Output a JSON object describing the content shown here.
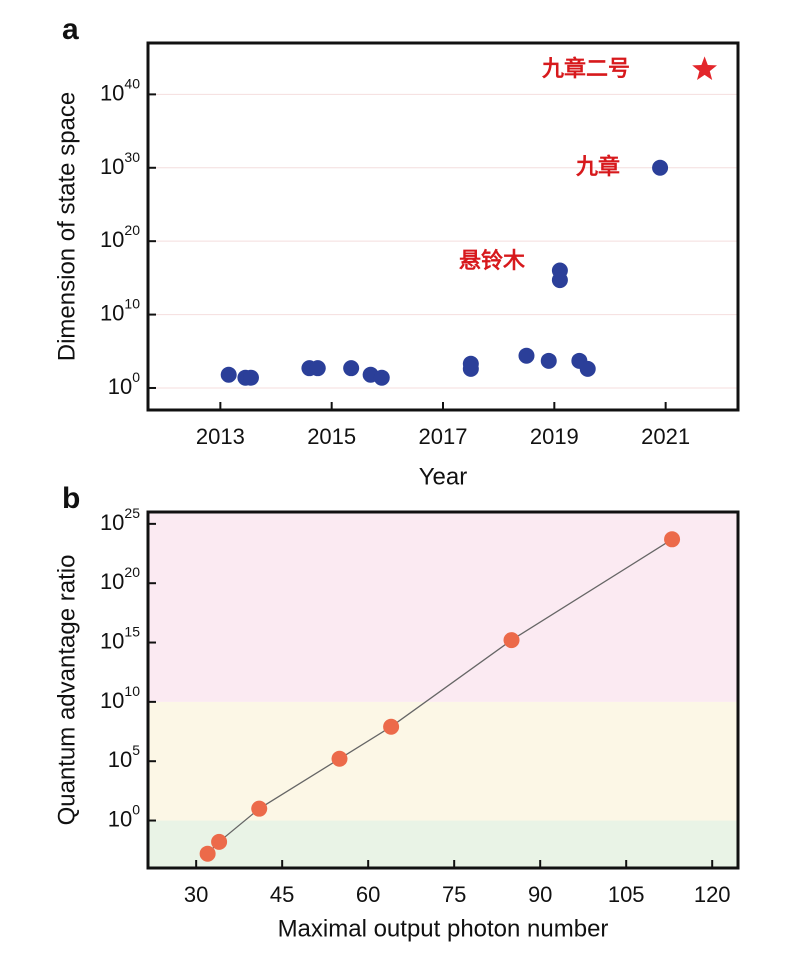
{
  "chart_data": [
    {
      "type": "scatter",
      "panel": "a",
      "x_label": "Year",
      "y_label": "Dimension of state space",
      "x": [
        2013.15,
        2013.45,
        2013.55,
        2014.6,
        2014.75,
        2015.35,
        2015.7,
        2015.9,
        2017.5,
        2017.5,
        2018.5,
        2018.9,
        2019.1,
        2019.1,
        2019.45,
        2019.6,
        2020.9
      ],
      "values": [
        63,
        25,
        25,
        500,
        500,
        500,
        63,
        25,
        2000,
        400,
        25000,
        5000,
        1e+16,
        500000000000000.0,
        5000,
        400,
        1e+30
      ],
      "color": "#2b3f99",
      "highlight": {
        "x": 2021.7,
        "value": 2.5e+43,
        "color": "#e3262b"
      },
      "annotations": [
        "悬铃木",
        "九章",
        "九章二号"
      ],
      "xlim": [
        2011.7,
        2022.3
      ],
      "xticks": [
        2013,
        2015,
        2017,
        2019,
        2021
      ],
      "ylim": [
        0.001,
        1e+47
      ],
      "log_y": true,
      "grid": true,
      "grid_color": "#f4dede",
      "yticks": [
        {
          "value": 1,
          "label": "10^0"
        },
        {
          "value": 10000000000.0,
          "label": "10^10"
        },
        {
          "value": 1e+20,
          "label": "10^20"
        },
        {
          "value": 1e+30,
          "label": "10^30"
        },
        {
          "value": 1e+40,
          "label": "10^40"
        }
      ]
    },
    {
      "type": "line",
      "panel": "b",
      "x_label": "Maximal output photon number",
      "y_label": "Quantum advantage ratio",
      "x": [
        32,
        34,
        41,
        55,
        64,
        85,
        113
      ],
      "values": [
        0.0016,
        0.016,
        10,
        160000,
        80000000,
        1600000000000000.0,
        5e+23
      ],
      "color": "#ec6a4a",
      "line_color": "#666666",
      "regions": [
        {
          "from": 0.0001,
          "to": 1,
          "color": "#e9f3e6"
        },
        {
          "from": 1,
          "to": 10000000000.0,
          "color": "#fcf7e6"
        },
        {
          "from": 10000000000.0,
          "to": 1e+26,
          "color": "#fbeaf2"
        }
      ],
      "xlim": [
        21.6,
        124.5
      ],
      "xticks": [
        30,
        45,
        60,
        75,
        90,
        105,
        120
      ],
      "ylim": [
        0.0001,
        1e+26
      ],
      "log_y": true,
      "grid": false,
      "yticks": [
        {
          "value": 1,
          "label": "10^0"
        },
        {
          "value": 100000.0,
          "label": "10^5"
        },
        {
          "value": 10000000000.0,
          "label": "10^10"
        },
        {
          "value": 1000000000000000.0,
          "label": "10^15"
        },
        {
          "value": 1e+20,
          "label": "10^20"
        },
        {
          "value": 1e+25,
          "label": "10^25"
        }
      ]
    }
  ]
}
